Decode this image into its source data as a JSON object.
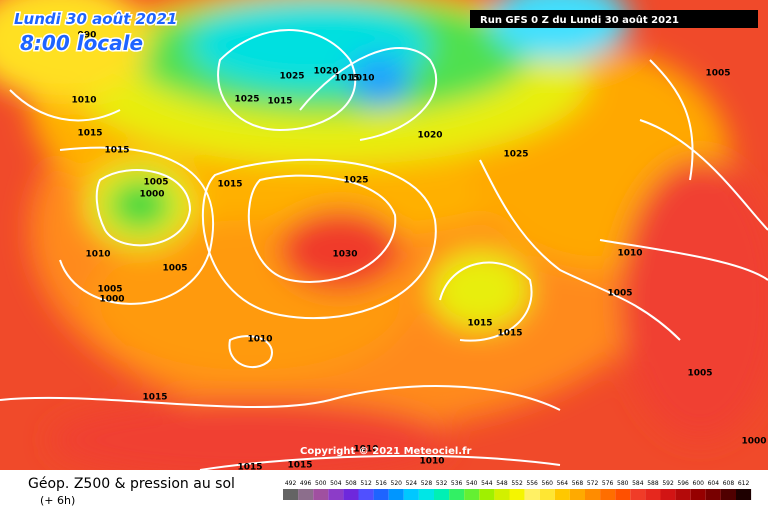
{
  "header": {
    "date": "Lundi 30 août 2021",
    "time": "8:00 locale",
    "run": "Run GFS 0 Z du Lundi 30 août 2021"
  },
  "copyright": "Copyright © 2021 Meteociel.fr",
  "footer": {
    "title": "Géop. Z500 & pression au sol",
    "lead": "(+ 6h)"
  },
  "isobars": {
    "labels": [
      990,
      1010,
      1015,
      1015,
      1005,
      1000,
      1015,
      1010,
      1005,
      1005,
      1000,
      1010,
      1015,
      1025,
      1020,
      1015,
      1010,
      1025,
      1015,
      1020,
      1025,
      1025,
      1030,
      1015,
      1015,
      1010,
      1005,
      1005,
      1005,
      1000,
      1010,
      1010,
      1015,
      1015
    ]
  },
  "legend": {
    "values": [
      492,
      496,
      500,
      504,
      508,
      512,
      516,
      520,
      524,
      528,
      532,
      536,
      540,
      544,
      548,
      552,
      556,
      560,
      564,
      568,
      572,
      576,
      580,
      584,
      588,
      592,
      596,
      600,
      604,
      608,
      612
    ],
    "colors": [
      "#646464",
      "#8c6e8c",
      "#a050a0",
      "#8c3cc8",
      "#6e28dc",
      "#5050ff",
      "#1e64ff",
      "#0096ff",
      "#00c8ff",
      "#00e6e6",
      "#00f0b4",
      "#32f064",
      "#64f032",
      "#a0f000",
      "#d2f000",
      "#f5f500",
      "#fff064",
      "#ffe632",
      "#ffc800",
      "#ffaa00",
      "#ff8c00",
      "#ff6e00",
      "#ff5000",
      "#f03c28",
      "#e6281e",
      "#d21414",
      "#b40a0a",
      "#960000",
      "#780000",
      "#500000",
      "#1e0000"
    ]
  }
}
